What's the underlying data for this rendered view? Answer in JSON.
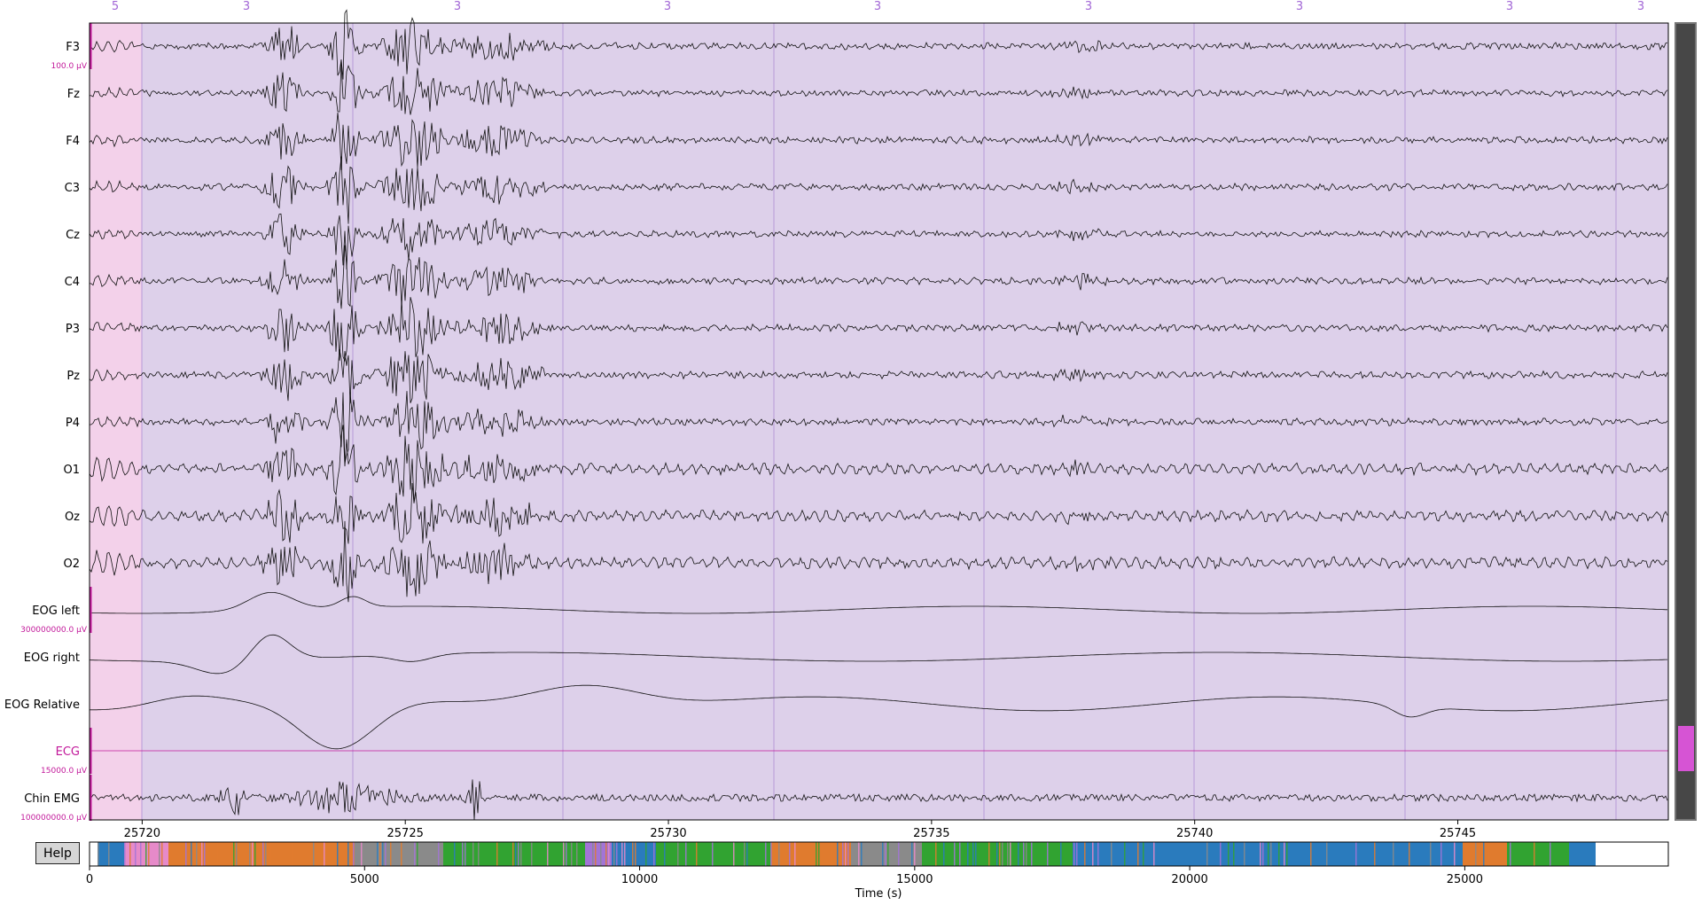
{
  "epoch_labels": [
    "5",
    "3",
    "3",
    "3",
    "3",
    "3",
    "3",
    "3",
    "3"
  ],
  "channels": [
    {
      "name": "F3",
      "kind": "eeg",
      "amp": 1.0
    },
    {
      "name": "Fz",
      "kind": "eeg",
      "amp": 0.95
    },
    {
      "name": "F4",
      "kind": "eeg",
      "amp": 1.0
    },
    {
      "name": "C3",
      "kind": "eeg",
      "amp": 1.0
    },
    {
      "name": "Cz",
      "kind": "eeg",
      "amp": 0.95
    },
    {
      "name": "C4",
      "kind": "eeg",
      "amp": 1.0
    },
    {
      "name": "P3",
      "kind": "eeg",
      "amp": 1.05
    },
    {
      "name": "Pz",
      "kind": "eeg",
      "amp": 1.05
    },
    {
      "name": "P4",
      "kind": "eeg",
      "amp": 1.05
    },
    {
      "name": "O1",
      "kind": "eeg",
      "amp": 1.15
    },
    {
      "name": "Oz",
      "kind": "eeg",
      "amp": 1.15
    },
    {
      "name": "O2",
      "kind": "eeg",
      "amp": 1.2
    },
    {
      "name": "EOG left",
      "kind": "eog",
      "amp": 1.0
    },
    {
      "name": "EOG right",
      "kind": "eog",
      "amp": 1.0
    },
    {
      "name": "EOG Relative",
      "kind": "eog",
      "amp": 1.3
    },
    {
      "name": "ECG",
      "kind": "ecg",
      "amp": 0
    },
    {
      "name": "Chin EMG",
      "kind": "emg",
      "amp": 1.0
    }
  ],
  "scale_labels": {
    "eeg": "100.0 µV",
    "eog": "300000000.0 µV",
    "ecg": "15000.0 µV",
    "emg": "100000000.0 µV"
  },
  "main_x_ticks": [
    "25720",
    "25725",
    "25730",
    "25735",
    "25740",
    "25745"
  ],
  "main_x_range": [
    25719,
    25749
  ],
  "main_tick_values": [
    25720,
    25725,
    25730,
    25735,
    25740,
    25745
  ],
  "overview_ticks": [
    "0",
    "5000",
    "10000",
    "15000",
    "20000",
    "25000"
  ],
  "overview_tick_values": [
    0,
    5000,
    10000,
    15000,
    20000,
    25000
  ],
  "overview_range": [
    0,
    28700
  ],
  "overview_end": 26700,
  "xlabel": "Time (s)",
  "help_label": "Help",
  "colors": {
    "stage_3_fill": "#ddd0ea",
    "stage_5_fill": "#f3d1ea",
    "epoch_label_color": "#a266d6",
    "boundary_line": "#b89ad8",
    "trace": "#111111",
    "highlight": "#c2189a",
    "scrollbar_bg": "#474747",
    "scrollbar_thumb": "#d654d4",
    "overview_stage_1": "#2a7bbd",
    "overview_stage_2": "#31a331",
    "overview_stage_3": "#e07b2e",
    "overview_stage_4": "#8a8a8a",
    "overview_stage_5": "#e68ac9",
    "overview_stage_6": "#a274d6"
  }
}
